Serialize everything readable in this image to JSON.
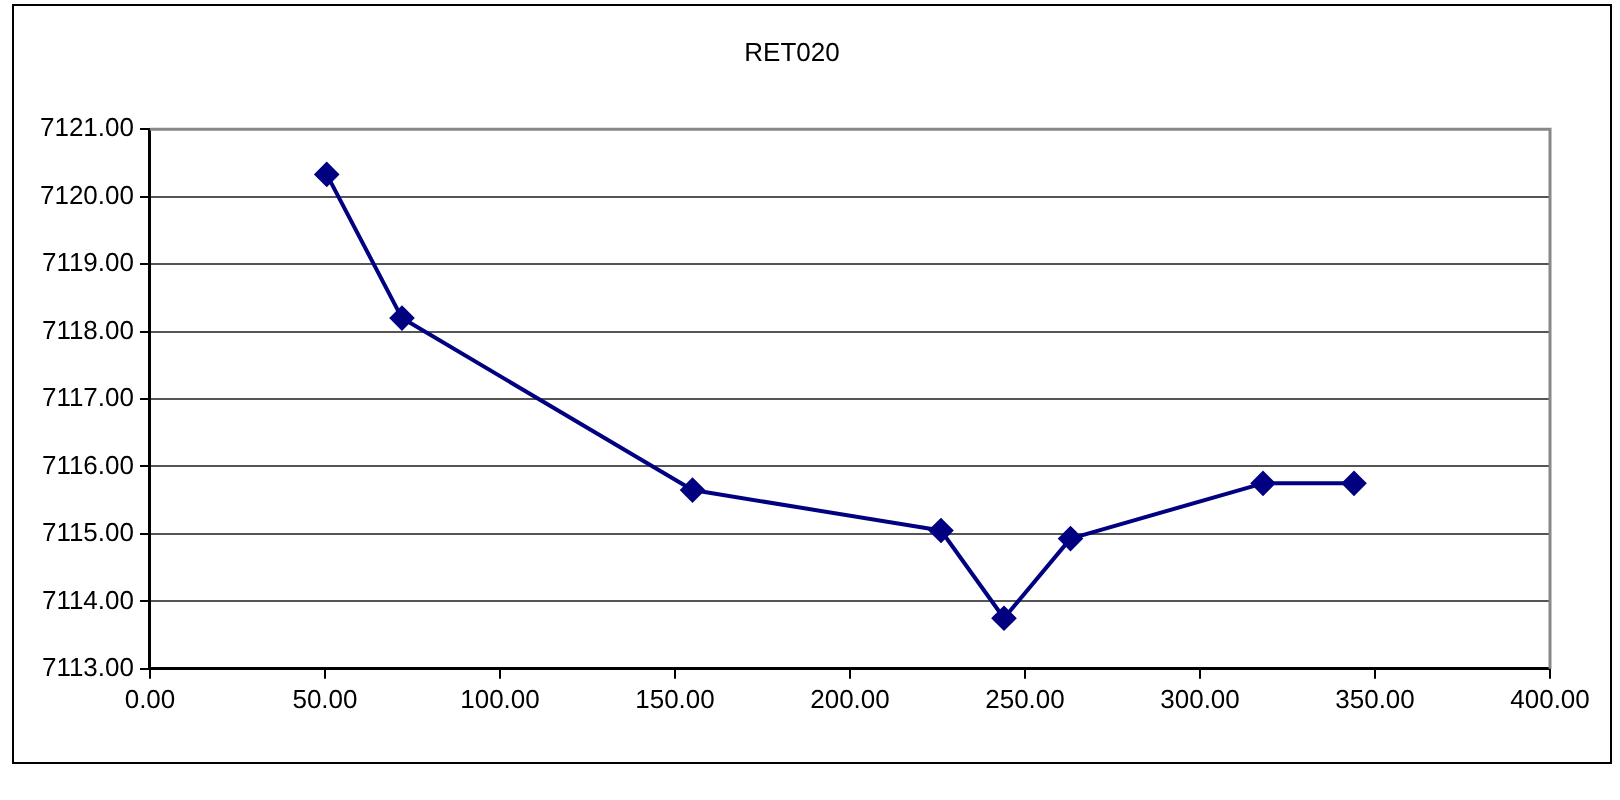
{
  "chart_data": {
    "type": "line",
    "title": "RET020",
    "x": [
      50.5,
      72,
      155,
      226,
      244,
      263,
      318,
      344
    ],
    "series": [
      {
        "color": "#000080",
        "values": [
          7120.33,
          7118.2,
          7115.65,
          7115.05,
          7113.75,
          7114.93,
          7115.75,
          7115.75
        ]
      }
    ],
    "xlim": [
      0,
      400
    ],
    "xticks": [
      {
        "value": 0,
        "label": "0.00"
      },
      {
        "value": 50,
        "label": "50.00"
      },
      {
        "value": 100,
        "label": "100.00"
      },
      {
        "value": 150,
        "label": "150.00"
      },
      {
        "value": 200,
        "label": "200.00"
      },
      {
        "value": 250,
        "label": "250.00"
      },
      {
        "value": 300,
        "label": "300.00"
      },
      {
        "value": 350,
        "label": "350.00"
      },
      {
        "value": 400,
        "label": "400.00"
      }
    ],
    "ylim": [
      7113,
      7121
    ],
    "yticks": [
      {
        "value": 7113,
        "label": "7113.00"
      },
      {
        "value": 7114,
        "label": "7114.00"
      },
      {
        "value": 7115,
        "label": "7115.00"
      },
      {
        "value": 7116,
        "label": "7116.00"
      },
      {
        "value": 7117,
        "label": "7117.00"
      },
      {
        "value": 7118,
        "label": "7118.00"
      },
      {
        "value": 7119,
        "label": "7119.00"
      },
      {
        "value": 7120,
        "label": "7120.00"
      },
      {
        "value": 7121,
        "label": "7121.00"
      }
    ],
    "grid": "y",
    "legend": false,
    "marker": "diamond",
    "line_style": "solid"
  }
}
